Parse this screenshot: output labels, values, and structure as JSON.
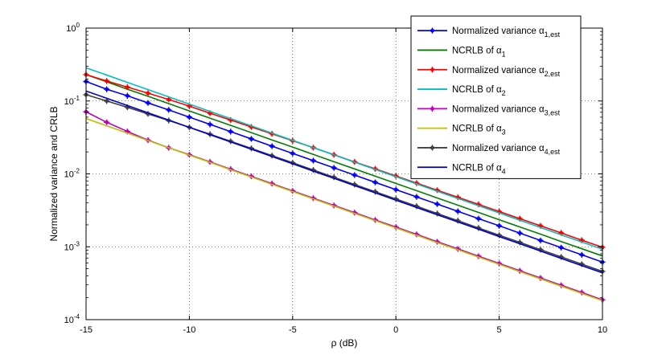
{
  "chart_data": {
    "type": "line",
    "xlabel": "ρ (dB)",
    "ylabel": "Normalized variance and CRLB",
    "xlim": [
      -15,
      10
    ],
    "ylim": [
      0.0001,
      1
    ],
    "yscale": "log",
    "grid": true,
    "legend_position": "top-right",
    "x_ticks": [
      "-15",
      "-10",
      "-5",
      "0",
      "5",
      "10"
    ],
    "y_ticks": [
      {
        "base": "10",
        "exp": "0"
      },
      {
        "base": "10",
        "exp": "-1"
      },
      {
        "base": "10",
        "exp": "-2"
      },
      {
        "base": "10",
        "exp": "-3"
      },
      {
        "base": "10",
        "exp": "-4"
      }
    ],
    "x": [
      -15,
      -14,
      -13,
      -12,
      -11,
      -10,
      -9,
      -8,
      -7,
      -6,
      -5,
      -4,
      -3,
      -2,
      -1,
      0,
      1,
      2,
      3,
      4,
      5,
      6,
      7,
      8,
      9,
      10
    ],
    "series": [
      {
        "label_main": "Normalized variance α",
        "label_sub": "1,est",
        "color": "#0000ff",
        "marker": true,
        "values": [
          0.185,
          0.145,
          0.118,
          0.094,
          0.0755,
          0.06,
          0.0478,
          0.038,
          0.0302,
          0.024,
          0.0191,
          0.0152,
          0.0121,
          0.00962,
          0.00765,
          0.00608,
          0.00484,
          0.00385,
          0.00306,
          0.00243,
          0.00194,
          0.00154,
          0.00122,
          0.000974,
          0.000775,
          0.000616
        ]
      },
      {
        "label_main": "NCRLB of α",
        "label_sub": "1",
        "color": "#007f00",
        "marker": false,
        "values": [
          0.23,
          0.183,
          0.145,
          0.116,
          0.092,
          0.0731,
          0.0581,
          0.0462,
          0.0368,
          0.0292,
          0.0233,
          0.0185,
          0.0147,
          0.0117,
          0.00929,
          0.00739,
          0.00588,
          0.00467,
          0.00372,
          0.00296,
          0.00235,
          0.00187,
          0.00149,
          0.00118,
          0.00094,
          0.000748
        ]
      },
      {
        "label_main": "Normalized variance α",
        "label_sub": "2,est",
        "color": "#ff0000",
        "marker": true,
        "values": [
          0.23,
          0.188,
          0.155,
          0.128,
          0.105,
          0.085,
          0.068,
          0.0548,
          0.044,
          0.0355,
          0.0285,
          0.0229,
          0.0183,
          0.0146,
          0.0117,
          0.00935,
          0.00747,
          0.00597,
          0.00477,
          0.00381,
          0.00304,
          0.00243,
          0.00194,
          0.00155,
          0.00123,
          0.000985
        ]
      },
      {
        "label_main": "NCRLB of α",
        "label_sub": "2",
        "color": "#00bfbf",
        "marker": false,
        "values": [
          0.285,
          0.227,
          0.18,
          0.143,
          0.114,
          0.0906,
          0.072,
          0.0572,
          0.0455,
          0.0362,
          0.0288,
          0.0229,
          0.0182,
          0.0145,
          0.0115,
          0.00915,
          0.00728,
          0.00578,
          0.0046,
          0.00366,
          0.00291,
          0.00231,
          0.00184,
          0.00146,
          0.00116,
          0.000926
        ]
      },
      {
        "label_main": "Normalized variance α",
        "label_sub": "3,est",
        "color": "#bf00bf",
        "marker": true,
        "values": [
          0.071,
          0.051,
          0.0382,
          0.029,
          0.0228,
          0.0183,
          0.0146,
          0.0116,
          0.00925,
          0.00735,
          0.00584,
          0.00464,
          0.00369,
          0.00294,
          0.00233,
          0.00186,
          0.00148,
          0.00117,
          0.000934,
          0.000742,
          0.00059,
          0.000469,
          0.000373,
          0.000297,
          0.000236,
          0.000187
        ]
      },
      {
        "label_main": "NCRLB of α",
        "label_sub": "3",
        "color": "#bfbf00",
        "marker": false,
        "values": [
          0.0575,
          0.0456,
          0.0362,
          0.0287,
          0.0228,
          0.0181,
          0.0144,
          0.0114,
          0.00907,
          0.0072,
          0.00572,
          0.00454,
          0.00361,
          0.00287,
          0.00228,
          0.00181,
          0.00144,
          0.00114,
          0.000908,
          0.000722,
          0.000574,
          0.000456,
          0.000362,
          0.000288,
          0.000229,
          0.000182
        ]
      },
      {
        "label_main": "Normalized variance α",
        "label_sub": "4,est",
        "color": "#3f3f3f",
        "marker": true,
        "values": [
          0.122,
          0.1,
          0.082,
          0.0665,
          0.054,
          0.0436,
          0.035,
          0.028,
          0.0224,
          0.0178,
          0.0142,
          0.0113,
          0.00899,
          0.00715,
          0.00569,
          0.00453,
          0.0036,
          0.00286,
          0.00228,
          0.00181,
          0.00144,
          0.00115,
          0.000912,
          0.000725,
          0.000577,
          0.000459
        ]
      },
      {
        "label_main": "NCRLB of α",
        "label_sub": "4",
        "color": "#0000cc",
        "marker": false,
        "values": [
          0.137,
          0.109,
          0.0866,
          0.0688,
          0.0547,
          0.0434,
          0.0345,
          0.0274,
          0.0218,
          0.0173,
          0.0138,
          0.0109,
          0.00869,
          0.0069,
          0.00549,
          0.00436,
          0.00346,
          0.00275,
          0.00219,
          0.00174,
          0.00138,
          0.0011,
          0.000872,
          0.000693,
          0.000551,
          0.000438
        ]
      }
    ]
  }
}
